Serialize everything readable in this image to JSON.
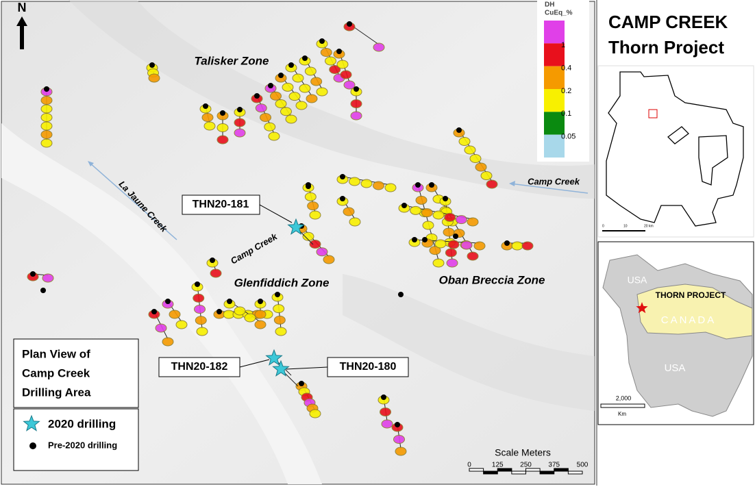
{
  "map": {
    "north": "N",
    "grade_legend": {
      "title": [
        "DH",
        "CuEq_%"
      ],
      "colors": [
        "#e040e8",
        "#e8101c",
        "#f59a00",
        "#f8f000",
        "#0a8a10",
        "#a8d8ea"
      ],
      "labels": [
        "1",
        "0.4",
        "0.2",
        "0.1",
        "0.05"
      ]
    },
    "zones": [
      "Talisker Zone",
      "Glenfiddich Zone",
      "Oban Breccia Zone"
    ],
    "creeks": [
      "La Jaune Creek",
      "Camp Creek",
      "Camp Creek"
    ],
    "holes": [
      "THN20-181",
      "THN20-182",
      "THN20-180"
    ],
    "key": {
      "title": [
        "Plan View of",
        "Camp Creek",
        "Drilling Area"
      ],
      "items": [
        "2020 drilling",
        "Pre-2020 drilling"
      ]
    },
    "scale": {
      "title": "Scale Meters",
      "ticks": [
        "0",
        "125",
        "250",
        "375",
        "500"
      ]
    }
  },
  "side": {
    "title": [
      "CAMP CREEK",
      "Thorn Project"
    ],
    "claims_inset": {
      "scale": [
        "0",
        "10",
        "20 km"
      ]
    },
    "locator_inset": {
      "labels": [
        "USA",
        "THORN PROJECT",
        "CANADA",
        "USA"
      ],
      "scale": [
        "2,000",
        "Km"
      ]
    }
  }
}
